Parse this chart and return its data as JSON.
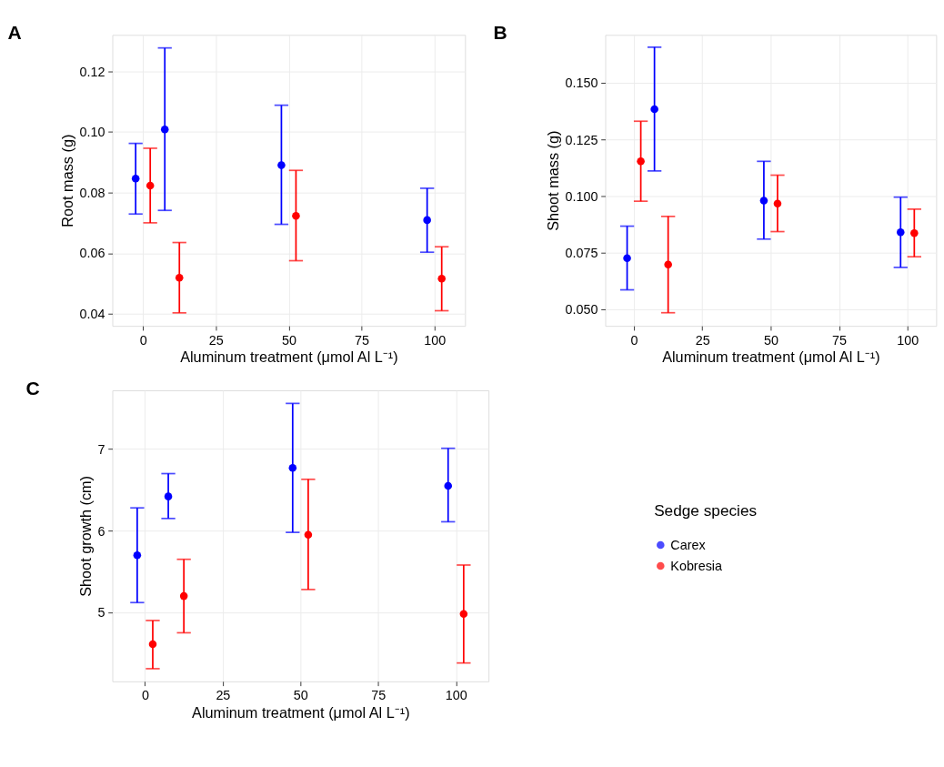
{
  "chart_data": [
    {
      "type": "scatter",
      "title": "A",
      "xlabel": "Aluminum treatment (μmol Al L⁻¹)",
      "ylabel": "Root mass (g)",
      "xlim": [
        -10.5,
        110.5
      ],
      "xticks": [
        0,
        25,
        50,
        75,
        100
      ],
      "ylim": [
        0.036,
        0.132
      ],
      "yticks": [
        {
          "value": 0.04,
          "label": "0.04"
        },
        {
          "value": 0.06,
          "label": "0.06"
        },
        {
          "value": 0.08,
          "label": "0.08"
        },
        {
          "value": 0.1,
          "label": "0.10"
        },
        {
          "value": 0.12,
          "label": "0.12"
        }
      ],
      "grid": true,
      "marker": "circle",
      "series": [
        {
          "color": "#0000ff",
          "x": [
            -2.5,
            7.5,
            47.5,
            97.5
          ],
          "values": [
            0.0846,
            0.1008,
            0.089,
            0.0709
          ],
          "errors": [
            [
              0.0729,
              0.0962
            ],
            [
              0.0741,
              0.1277
            ],
            [
              0.0695,
              0.1088
            ],
            [
              0.0603,
              0.0814
            ]
          ]
        },
        {
          "color": "#ff0000",
          "x": [
            2.5,
            12.5,
            52.5,
            102.5
          ],
          "values": [
            0.0823,
            0.0519,
            0.0723,
            0.0516
          ],
          "errors": [
            [
              0.07,
              0.0946
            ],
            [
              0.0403,
              0.0635
            ],
            [
              0.0575,
              0.0873
            ],
            [
              0.041,
              0.0621
            ]
          ]
        }
      ]
    },
    {
      "type": "scatter",
      "title": "B",
      "xlabel": "Aluminum treatment (μmol Al L⁻¹)",
      "ylabel": "Shoot mass (g)",
      "xlim": [
        -10.5,
        110.5
      ],
      "xticks": [
        0,
        25,
        50,
        75,
        100
      ],
      "ylim": [
        0.0428,
        0.1712
      ],
      "yticks": [
        {
          "value": 0.05,
          "label": "0.050"
        },
        {
          "value": 0.075,
          "label": "0.075"
        },
        {
          "value": 0.1,
          "label": "0.100"
        },
        {
          "value": 0.125,
          "label": "0.125"
        },
        {
          "value": 0.15,
          "label": "0.150"
        }
      ],
      "grid": true,
      "marker": "circle",
      "series": [
        {
          "color": "#0000ff",
          "x": [
            -2.5,
            7.5,
            47.5,
            97.5
          ],
          "values": [
            0.0727,
            0.1384,
            0.0981,
            0.0841
          ],
          "errors": [
            [
              0.0587,
              0.0868
            ],
            [
              0.1112,
              0.1658
            ],
            [
              0.0811,
              0.1154
            ],
            [
              0.0686,
              0.0996
            ]
          ]
        },
        {
          "color": "#ff0000",
          "x": [
            2.5,
            12.5,
            52.5,
            102.5
          ],
          "values": [
            0.1154,
            0.0699,
            0.0968,
            0.0837
          ],
          "errors": [
            [
              0.0978,
              0.1331
            ],
            [
              0.0486,
              0.0911
            ],
            [
              0.0844,
              0.1093
            ],
            [
              0.0733,
              0.0943
            ]
          ]
        }
      ]
    },
    {
      "type": "scatter",
      "title": "C",
      "xlabel": "Aluminum treatment (μmol Al L⁻¹)",
      "ylabel": "Shoot growth (cm)",
      "xlim": [
        -10.5,
        110.5
      ],
      "xticks": [
        0,
        25,
        50,
        75,
        100
      ],
      "ylim": [
        4.155,
        7.72
      ],
      "yticks": [
        5,
        6,
        7
      ],
      "grid": true,
      "marker": "circle",
      "legend": "right",
      "legend_title": "Sedge species",
      "series": [
        {
          "name": "Carex",
          "color": "#0000ff",
          "x": [
            -2.5,
            7.5,
            47.5,
            97.5
          ],
          "values": [
            5.7,
            6.42,
            6.77,
            6.55
          ],
          "errors": [
            [
              5.12,
              6.28
            ],
            [
              6.15,
              6.7
            ],
            [
              5.98,
              7.56
            ],
            [
              6.11,
              7.01
            ]
          ]
        },
        {
          "name": "Kobresia",
          "color": "#ff0000",
          "x": [
            2.5,
            12.5,
            52.5,
            102.5
          ],
          "values": [
            4.61,
            5.2,
            5.95,
            4.98
          ],
          "errors": [
            [
              4.31,
              4.9
            ],
            [
              4.75,
              5.65
            ],
            [
              5.28,
              6.63
            ],
            [
              4.38,
              5.58
            ]
          ]
        }
      ]
    }
  ]
}
